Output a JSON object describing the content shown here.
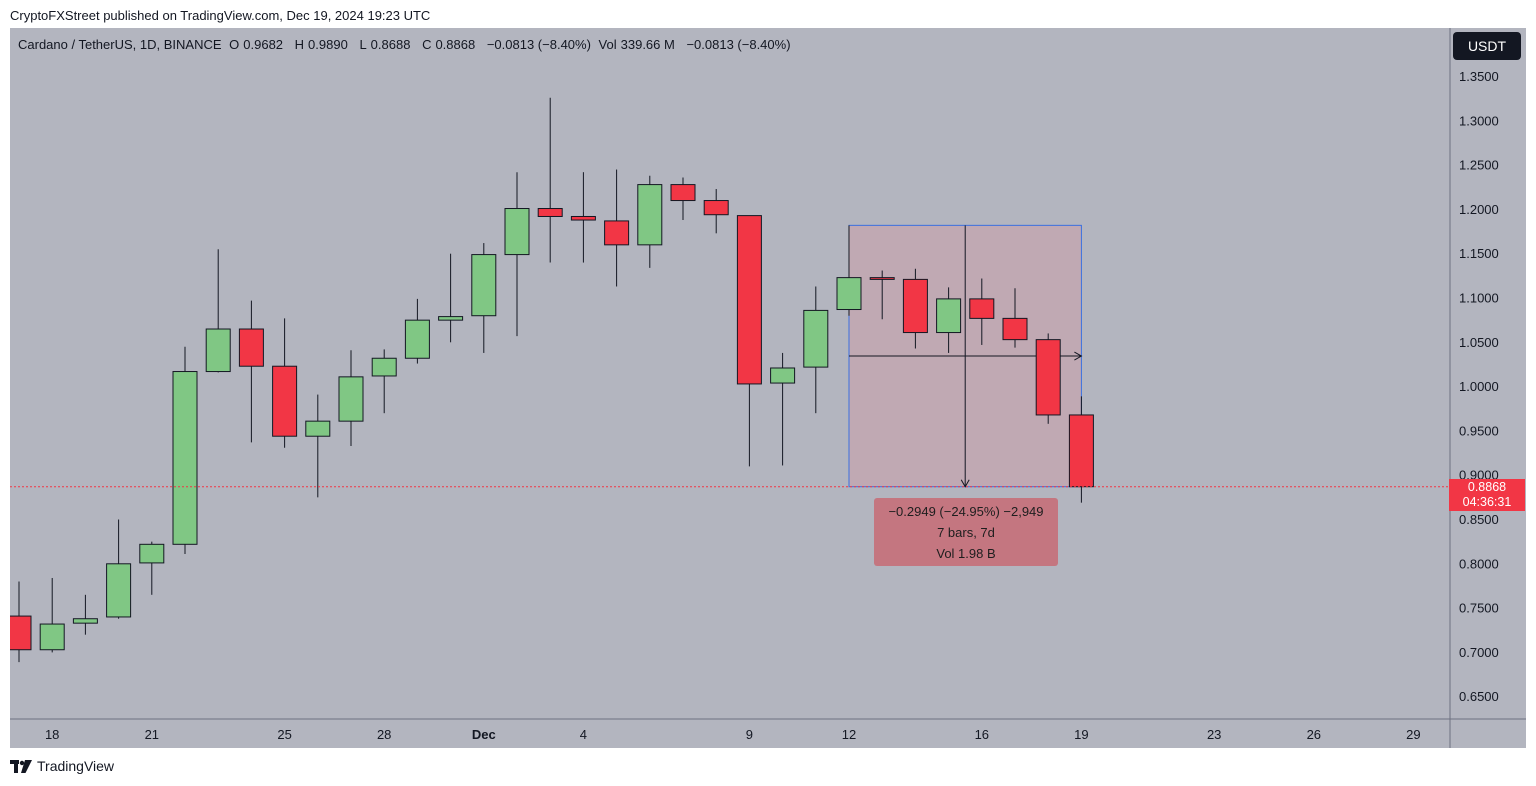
{
  "header": {
    "published_by": "CryptoFXStreet published on TradingView.com, Dec 19, 2024 19:23 UTC"
  },
  "legend": {
    "symbol": "Cardano / TetherUS, 1D, BINANCE",
    "open_label": "O",
    "open": "0.9682",
    "high_label": "H",
    "high": "0.9890",
    "low_label": "L",
    "low": "0.8688",
    "close_label": "C",
    "close": "0.8868",
    "change": "−0.0813 (−8.40%)",
    "vol_label": "Vol",
    "vol": "339.66 M",
    "vol_change": "−0.0813 (−8.40%)"
  },
  "currency_button": "USDT",
  "last_price": {
    "value": "0.8868",
    "countdown": "04:36:31"
  },
  "measure": {
    "line1": "−0.2949 (−24.95%) −2,949",
    "line2": "7 bars, 7d",
    "line3": "Vol 1.98 B"
  },
  "footer": {
    "brand": "TradingView"
  },
  "colors": {
    "up": "#80c784",
    "down": "#f23645",
    "background": "#b3b5bf",
    "measure_fill": "#c0a9b3",
    "measure_border": "#3a6fe0"
  },
  "chart_data": {
    "type": "candlestick",
    "price_axis_ticks": [
      "1.3500",
      "1.3000",
      "1.2500",
      "1.2000",
      "1.1500",
      "1.1000",
      "1.0500",
      "1.0000",
      "0.9500",
      "0.9000",
      "0.8500",
      "0.8000",
      "0.7500",
      "0.7000",
      "0.6500"
    ],
    "time_axis_ticks": [
      {
        "label": "18",
        "bar": 1
      },
      {
        "label": "21",
        "bar": 4
      },
      {
        "label": "25",
        "bar": 8
      },
      {
        "label": "28",
        "bar": 11
      },
      {
        "label": "Dec",
        "bar": 14
      },
      {
        "label": "4",
        "bar": 17
      },
      {
        "label": "9",
        "bar": 22
      },
      {
        "label": "12",
        "bar": 25
      },
      {
        "label": "16",
        "bar": 29
      },
      {
        "label": "19",
        "bar": 32
      },
      {
        "label": "23",
        "bar": 36
      },
      {
        "label": "26",
        "bar": 39
      },
      {
        "label": "29",
        "bar": 42
      }
    ],
    "ylim": [
      0.625,
      1.39
    ],
    "candles": [
      {
        "o": 0.741,
        "h": 0.78,
        "l": 0.689,
        "c": 0.703
      },
      {
        "o": 0.703,
        "h": 0.784,
        "l": 0.7,
        "c": 0.732
      },
      {
        "o": 0.733,
        "h": 0.765,
        "l": 0.72,
        "c": 0.738
      },
      {
        "o": 0.74,
        "h": 0.85,
        "l": 0.738,
        "c": 0.8
      },
      {
        "o": 0.801,
        "h": 0.825,
        "l": 0.765,
        "c": 0.822
      },
      {
        "o": 0.822,
        "h": 1.045,
        "l": 0.811,
        "c": 1.017
      },
      {
        "o": 1.017,
        "h": 1.155,
        "l": 1.016,
        "c": 1.065
      },
      {
        "o": 1.065,
        "h": 1.097,
        "l": 0.937,
        "c": 1.023
      },
      {
        "o": 1.023,
        "h": 1.077,
        "l": 0.931,
        "c": 0.944
      },
      {
        "o": 0.944,
        "h": 0.991,
        "l": 0.875,
        "c": 0.961
      },
      {
        "o": 0.961,
        "h": 1.041,
        "l": 0.933,
        "c": 1.011
      },
      {
        "o": 1.012,
        "h": 1.042,
        "l": 0.97,
        "c": 1.032
      },
      {
        "o": 1.032,
        "h": 1.099,
        "l": 1.026,
        "c": 1.075
      },
      {
        "o": 1.075,
        "h": 1.15,
        "l": 1.05,
        "c": 1.079
      },
      {
        "o": 1.08,
        "h": 1.162,
        "l": 1.038,
        "c": 1.149
      },
      {
        "o": 1.149,
        "h": 1.242,
        "l": 1.057,
        "c": 1.201
      },
      {
        "o": 1.201,
        "h": 1.326,
        "l": 1.14,
        "c": 1.192
      },
      {
        "o": 1.192,
        "h": 1.242,
        "l": 1.14,
        "c": 1.188
      },
      {
        "o": 1.187,
        "h": 1.245,
        "l": 1.113,
        "c": 1.16
      },
      {
        "o": 1.16,
        "h": 1.238,
        "l": 1.134,
        "c": 1.228
      },
      {
        "o": 1.228,
        "h": 1.236,
        "l": 1.188,
        "c": 1.21
      },
      {
        "o": 1.21,
        "h": 1.223,
        "l": 1.173,
        "c": 1.194
      },
      {
        "o": 1.193,
        "h": 1.193,
        "l": 0.91,
        "c": 1.003
      },
      {
        "o": 1.004,
        "h": 1.038,
        "l": 0.911,
        "c": 1.021
      },
      {
        "o": 1.022,
        "h": 1.113,
        "l": 0.97,
        "c": 1.086
      },
      {
        "o": 1.087,
        "h": 1.182,
        "l": 1.08,
        "c": 1.123
      },
      {
        "o": 1.123,
        "h": 1.131,
        "l": 1.076,
        "c": 1.121
      },
      {
        "o": 1.121,
        "h": 1.133,
        "l": 1.043,
        "c": 1.061
      },
      {
        "o": 1.061,
        "h": 1.112,
        "l": 1.038,
        "c": 1.099
      },
      {
        "o": 1.099,
        "h": 1.122,
        "l": 1.047,
        "c": 1.077
      },
      {
        "o": 1.077,
        "h": 1.111,
        "l": 1.044,
        "c": 1.053
      },
      {
        "o": 1.053,
        "h": 1.06,
        "l": 0.958,
        "c": 0.968
      },
      {
        "o": 0.968,
        "h": 0.989,
        "l": 0.869,
        "c": 0.887
      }
    ],
    "measure_range": {
      "start_bar": 25,
      "end_bar": 32,
      "from_price": 1.182,
      "to_price": 0.887
    }
  }
}
